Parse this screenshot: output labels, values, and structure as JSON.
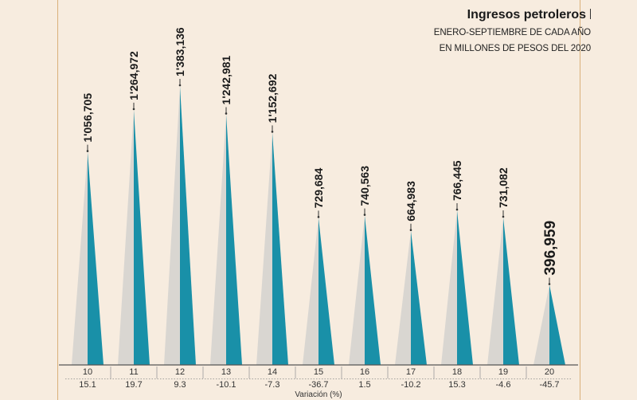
{
  "header": {
    "title": "Ingresos petroleros",
    "subtitle_line1": "ENERO-SEPTIEMBRE DE CADA AÑO",
    "subtitle_line2": "EN MILLONES DE PESOS DEL 2020"
  },
  "colors": {
    "background": "#f7ecdf",
    "peak_light": "#d9d6d1",
    "peak_dark": "#1990a8",
    "text": "#1a1a1a"
  },
  "chart_data": {
    "type": "bar",
    "title": "Ingresos petroleros",
    "subtitle": "ENERO-SEPTIEMBRE DE CADA AÑO EN MILLONES DE PESOS DEL 2020",
    "categories": [
      "10",
      "11",
      "12",
      "13",
      "14",
      "15",
      "16",
      "17",
      "18",
      "19",
      "20"
    ],
    "values": [
      1056705,
      1264972,
      1383136,
      1242981,
      1152692,
      729684,
      740563,
      664983,
      766445,
      731082,
      396959
    ],
    "value_labels": [
      "1'056,705",
      "1'264,972",
      "1'383,136",
      "1'242,981",
      "1'152,692",
      "729,684",
      "740,563",
      "664,983",
      "766,445",
      "731,082",
      "396,959"
    ],
    "variation": [
      "15.1",
      "19.7",
      "9.3",
      "-10.1",
      "-7.3",
      "-36.7",
      "1.5",
      "-10.2",
      "15.3",
      "-4.6",
      "-45.7"
    ],
    "variation_label": "Variación (%)",
    "highlight_index": 10,
    "ylim": [
      0,
      1383136
    ],
    "grid": false,
    "legend": "none"
  }
}
